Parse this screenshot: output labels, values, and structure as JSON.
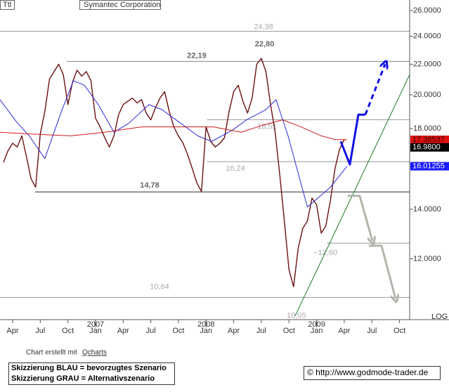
{
  "chart_data": {
    "type": "line",
    "title": "Symantec Corporation",
    "corner_label": "Ttl",
    "scale_label": "LOG",
    "log": true,
    "xlim": [
      1.63,
      46.1
    ],
    "ylim": [
      9.93,
      26.87
    ],
    "xticks": [
      {
        "value": 3,
        "label": "Apr"
      },
      {
        "value": 6,
        "label": "Jul"
      },
      {
        "value": 9,
        "label": "Oct"
      },
      {
        "value": 12,
        "label": "Jan"
      },
      {
        "value": 15,
        "label": "Apr"
      },
      {
        "value": 18,
        "label": "Jul"
      },
      {
        "value": 21,
        "label": "Oct"
      },
      {
        "value": 24,
        "label": "Jan"
      },
      {
        "value": 27,
        "label": "Apr"
      },
      {
        "value": 30,
        "label": "Jul"
      },
      {
        "value": 33,
        "label": "Oct"
      },
      {
        "value": 36,
        "label": "Jan"
      },
      {
        "value": 39,
        "label": "Apr"
      },
      {
        "value": 42,
        "label": "Jul"
      },
      {
        "value": 45,
        "label": "Oct"
      }
    ],
    "year_labels": [
      {
        "value": 12,
        "label": "2007"
      },
      {
        "value": 24,
        "label": "2008"
      },
      {
        "value": 36,
        "label": "2009"
      }
    ],
    "yticks": [
      {
        "value": 12,
        "label": "12.0000"
      },
      {
        "value": 14,
        "label": "14.0000"
      },
      {
        "value": 16,
        "label": "16.0000"
      },
      {
        "value": 18,
        "label": "18.0000"
      },
      {
        "value": 20,
        "label": "20.0000"
      },
      {
        "value": 22,
        "label": "22.0000"
      },
      {
        "value": 24,
        "label": "24.0000"
      },
      {
        "value": 26,
        "label": "26.0000"
      }
    ],
    "series": [
      {
        "color": "#6b1010",
        "width": 1.4,
        "x": [
          2,
          2.5,
          3,
          3.5,
          4,
          4.5,
          5,
          5.5,
          6,
          6.5,
          7,
          7.5,
          8,
          8.5,
          9,
          9.5,
          10,
          10.5,
          11,
          11.5,
          12,
          12.5,
          13,
          13.5,
          14,
          14.5,
          15,
          15.5,
          16,
          16.5,
          17,
          17.5,
          18,
          18.5,
          19,
          19.5,
          20,
          20.5,
          21,
          21.5,
          22,
          22.5,
          23,
          23.5,
          24,
          24.5,
          25,
          25.5,
          26,
          26.5,
          27,
          27.5,
          28,
          28.5,
          29,
          29.5,
          30,
          30.5,
          31,
          31.5,
          32,
          32.5,
          33,
          33.5,
          34,
          34.5,
          35,
          35.5,
          36,
          36.5,
          37,
          37.5,
          38,
          38.5,
          39
        ],
        "values": [
          16.2,
          16.8,
          17.2,
          17.0,
          17.6,
          16.5,
          15.4,
          15.0,
          17.7,
          19.0,
          21.0,
          21.5,
          22.0,
          21.3,
          19.4,
          20.8,
          21.6,
          21.2,
          21.5,
          20.9,
          18.6,
          18.1,
          17.5,
          17.0,
          17.6,
          18.8,
          19.4,
          19.6,
          19.8,
          19.5,
          19.7,
          18.9,
          18.5,
          19.2,
          19.8,
          20.2,
          19.0,
          18.1,
          17.6,
          17.2,
          16.6,
          15.9,
          15.2,
          14.8,
          18.1,
          17.3,
          17.0,
          17.2,
          17.5,
          19.0,
          20.2,
          20.6,
          19.6,
          18.9,
          19.8,
          22.0,
          22.4,
          21.5,
          19.4,
          17.8,
          15.6,
          13.5,
          11.6,
          11.0,
          12.4,
          13.2,
          13.5,
          14.5,
          14.2,
          13.0,
          13.3,
          14.4,
          15.9,
          16.9,
          17.39
        ]
      },
      {
        "color": "#2a2ad8",
        "width": 1,
        "x": [
          1.63,
          3.4,
          4.8,
          6.5,
          8.3,
          9.6,
          10.8,
          12.3,
          14.0,
          15.6,
          17.8,
          19.2,
          21.0,
          23.1,
          24.6,
          26.8,
          28.4,
          30.5,
          31.6,
          32.9,
          35.0,
          37.5,
          39.3
        ],
        "values": [
          19.7,
          18.4,
          17.6,
          16.4,
          19.0,
          20.9,
          20.6,
          19.4,
          17.8,
          18.3,
          19.4,
          19.1,
          18.4,
          17.6,
          17.3,
          17.9,
          18.5,
          19.1,
          19.7,
          17.6,
          14.1,
          15.0,
          16.01
        ]
      },
      {
        "color": "#d01818",
        "width": 1,
        "x": [
          1.63,
          5.0,
          9.3,
          13.0,
          17.0,
          21.0,
          24.8,
          27.8,
          30.2,
          32.3,
          34.3,
          36.5,
          38.0,
          39.3
        ],
        "values": [
          17.8,
          17.7,
          17.6,
          17.8,
          18.1,
          18.1,
          18.1,
          17.8,
          18.2,
          18.5,
          18.1,
          17.6,
          17.4,
          17.39
        ]
      },
      {
        "color": "#1e7a1e",
        "width": 1,
        "x": [
          33.66,
          46.1
        ],
        "values": [
          10.04,
          21.3
        ]
      },
      {
        "color": "#1010e8",
        "width": 3,
        "x": [
          38.62,
          39.61,
          40.53,
          41.29
        ],
        "values": [
          17.3,
          16.1,
          18.8,
          18.8
        ]
      },
      {
        "color": "#1010e8",
        "width": 3,
        "dash": true,
        "arrow": true,
        "x": [
          41.29,
          43.43
        ],
        "values": [
          18.8,
          22.0
        ]
      },
      {
        "color": "#b4b4ac",
        "width": 3,
        "arrow": true,
        "x": [
          39.38,
          40.68,
          42.05
        ],
        "values": [
          14.6,
          14.6,
          12.7
        ]
      },
      {
        "color": "#b4b4ac",
        "width": 3,
        "arrow": true,
        "x": [
          41.67,
          43.05,
          44.57
        ],
        "values": [
          12.5,
          12.5,
          10.6
        ]
      }
    ],
    "levels": [
      {
        "value": 24.38,
        "label": "24,38",
        "from": 1.63,
        "color": "#999999"
      },
      {
        "value": 22.19,
        "label": "22,19",
        "from": 8.87,
        "color": "#999999",
        "bold": true
      },
      {
        "value": 18.51,
        "label": "18,51",
        "from": 24.1,
        "color": "#999999"
      },
      {
        "value": 16.24,
        "label": "16,24",
        "from": 24.1,
        "color": "#999999"
      },
      {
        "value": 14.78,
        "label": "14,78",
        "from": 5.44,
        "color": "#555555",
        "bold": true
      },
      {
        "value": 12.6,
        "label": "~12,60",
        "from": 37.1,
        "color": "#999999"
      },
      {
        "value": 10.64,
        "label": "10,64",
        "from": 1.63,
        "color": "#999999"
      }
    ],
    "annotations": [
      {
        "value": 22.8,
        "label": "22,80",
        "x": 30.2,
        "bold": true
      },
      {
        "value": 10.05,
        "label": "10,05",
        "x": 33.66
      }
    ],
    "price_tags": [
      {
        "value": 17.38537,
        "label": "17.38537",
        "color": "#e01010",
        "text_color": "#330000"
      },
      {
        "value": 16.98,
        "label": "16.9800",
        "color": "#000000",
        "text_color": "#ffffff"
      },
      {
        "value": 16.01255,
        "label": "16.01255",
        "color": "#1a1aff",
        "text_color": "#ffffff"
      }
    ]
  },
  "footer": {
    "credit": "Chart erstellt mit",
    "credit_link": "Qcharts",
    "notes": [
      "Skizzierung BLAU = bevorzugtes Szenario",
      "Skizzierung GRAU = Alternativszenario"
    ],
    "copyright": "© http://www.godmode-trader.de"
  }
}
